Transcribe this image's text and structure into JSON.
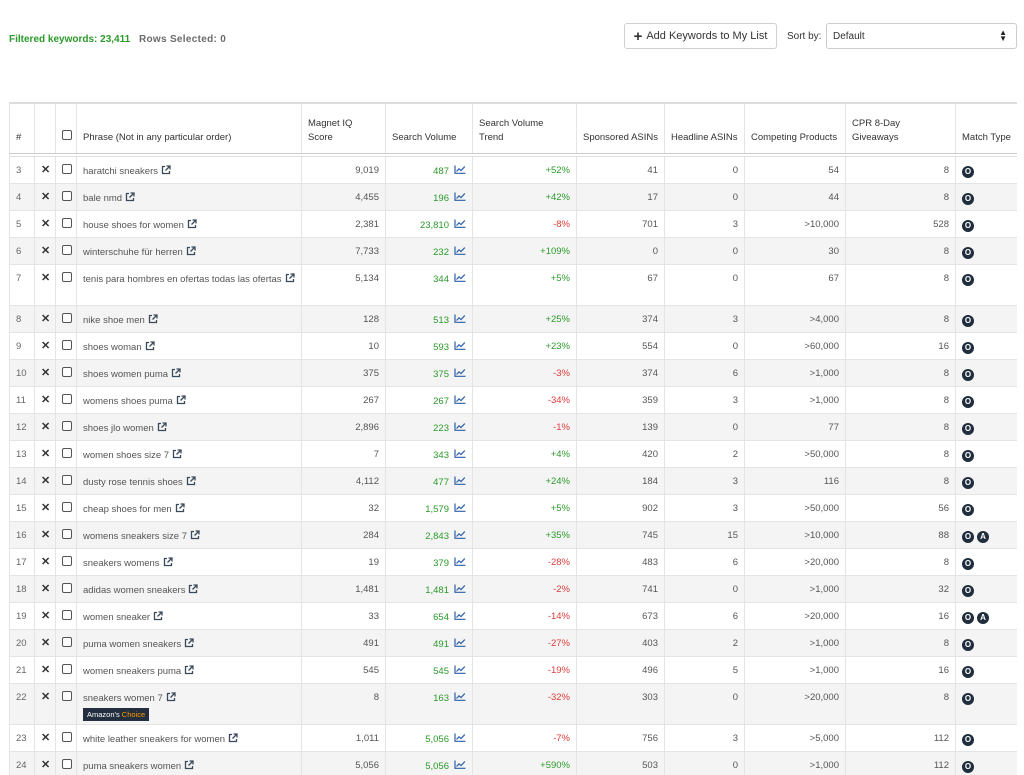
{
  "header": {
    "filtered_label": "Filtered keywords: 23,411",
    "rows_selected_label": "Rows Selected: 0",
    "add_button_label": "Add Keywords to My List",
    "sort_label": "Sort by:",
    "sort_value": "Default"
  },
  "table": {
    "columns": [
      "#",
      "",
      "",
      "Phrase (Not in any particular order)",
      "Magnet IQ Score",
      "Search Volume",
      "Search Volume Trend",
      "Sponsored ASINs",
      "Headline ASINs",
      "Competing Products",
      "CPR 8-Day Giveaways",
      "Match Type"
    ],
    "badge_text": "Amazon's",
    "badge_choice": "Choice",
    "rows": [
      {
        "n": "3",
        "phrase": "haratchi sneakers",
        "iq": "9,019",
        "vol": "487",
        "trend": "+52%",
        "sponsored": "41",
        "headline": "0",
        "competing": "54",
        "cpr": "8",
        "match": [
          "O"
        ]
      },
      {
        "n": "4",
        "phrase": "bale nmd",
        "iq": "4,455",
        "vol": "196",
        "trend": "+42%",
        "sponsored": "17",
        "headline": "0",
        "competing": "44",
        "cpr": "8",
        "match": [
          "O"
        ]
      },
      {
        "n": "5",
        "phrase": "house shoes for women",
        "iq": "2,381",
        "vol": "23,810",
        "trend": "-8%",
        "sponsored": "701",
        "headline": "3",
        "competing": ">10,000",
        "cpr": "528",
        "match": [
          "O"
        ]
      },
      {
        "n": "6",
        "phrase": "winterschuhe für herren",
        "iq": "7,733",
        "vol": "232",
        "trend": "+109%",
        "sponsored": "0",
        "headline": "0",
        "competing": "30",
        "cpr": "8",
        "match": [
          "O"
        ]
      },
      {
        "n": "7",
        "phrase": "tenis para hombres en ofertas todas las ofertas",
        "iq": "5,134",
        "vol": "344",
        "trend": "+5%",
        "sponsored": "67",
        "headline": "0",
        "competing": "67",
        "cpr": "8",
        "match": [
          "O"
        ],
        "tall": true
      },
      {
        "n": "8",
        "phrase": "nike shoe men",
        "iq": "128",
        "vol": "513",
        "trend": "+25%",
        "sponsored": "374",
        "headline": "3",
        "competing": ">4,000",
        "cpr": "8",
        "match": [
          "O"
        ]
      },
      {
        "n": "9",
        "phrase": "shoes woman",
        "iq": "10",
        "vol": "593",
        "trend": "+23%",
        "sponsored": "554",
        "headline": "0",
        "competing": ">60,000",
        "cpr": "16",
        "match": [
          "O"
        ]
      },
      {
        "n": "10",
        "phrase": "shoes women puma",
        "iq": "375",
        "vol": "375",
        "trend": "-3%",
        "sponsored": "374",
        "headline": "6",
        "competing": ">1,000",
        "cpr": "8",
        "match": [
          "O"
        ]
      },
      {
        "n": "11",
        "phrase": "womens shoes puma",
        "iq": "267",
        "vol": "267",
        "trend": "-34%",
        "sponsored": "359",
        "headline": "3",
        "competing": ">1,000",
        "cpr": "8",
        "match": [
          "O"
        ]
      },
      {
        "n": "12",
        "phrase": "shoes jlo women",
        "iq": "2,896",
        "vol": "223",
        "trend": "-1%",
        "sponsored": "139",
        "headline": "0",
        "competing": "77",
        "cpr": "8",
        "match": [
          "O"
        ]
      },
      {
        "n": "13",
        "phrase": "women shoes size 7",
        "iq": "7",
        "vol": "343",
        "trend": "+4%",
        "sponsored": "420",
        "headline": "2",
        "competing": ">50,000",
        "cpr": "8",
        "match": [
          "O"
        ]
      },
      {
        "n": "14",
        "phrase": "dusty rose tennis shoes",
        "iq": "4,112",
        "vol": "477",
        "trend": "+24%",
        "sponsored": "184",
        "headline": "3",
        "competing": "116",
        "cpr": "8",
        "match": [
          "O"
        ]
      },
      {
        "n": "15",
        "phrase": "cheap shoes for men",
        "iq": "32",
        "vol": "1,579",
        "trend": "+5%",
        "sponsored": "902",
        "headline": "3",
        "competing": ">50,000",
        "cpr": "56",
        "match": [
          "O"
        ]
      },
      {
        "n": "16",
        "phrase": "womens sneakers size 7",
        "iq": "284",
        "vol": "2,843",
        "trend": "+35%",
        "sponsored": "745",
        "headline": "15",
        "competing": ">10,000",
        "cpr": "88",
        "match": [
          "O",
          "A"
        ]
      },
      {
        "n": "17",
        "phrase": "sneakers womens",
        "iq": "19",
        "vol": "379",
        "trend": "-28%",
        "sponsored": "483",
        "headline": "6",
        "competing": ">20,000",
        "cpr": "8",
        "match": [
          "O"
        ]
      },
      {
        "n": "18",
        "phrase": "adidas women sneakers",
        "iq": "1,481",
        "vol": "1,481",
        "trend": "-2%",
        "sponsored": "741",
        "headline": "0",
        "competing": ">1,000",
        "cpr": "32",
        "match": [
          "O"
        ]
      },
      {
        "n": "19",
        "phrase": "women sneaker",
        "iq": "33",
        "vol": "654",
        "trend": "-14%",
        "sponsored": "673",
        "headline": "6",
        "competing": ">20,000",
        "cpr": "16",
        "match": [
          "O",
          "A"
        ]
      },
      {
        "n": "20",
        "phrase": "puma women sneakers",
        "iq": "491",
        "vol": "491",
        "trend": "-27%",
        "sponsored": "403",
        "headline": "2",
        "competing": ">1,000",
        "cpr": "8",
        "match": [
          "O"
        ]
      },
      {
        "n": "21",
        "phrase": "women sneakers puma",
        "iq": "545",
        "vol": "545",
        "trend": "-19%",
        "sponsored": "496",
        "headline": "5",
        "competing": ">1,000",
        "cpr": "16",
        "match": [
          "O"
        ]
      },
      {
        "n": "22",
        "phrase": "sneakers women 7",
        "iq": "8",
        "vol": "163",
        "trend": "-32%",
        "sponsored": "303",
        "headline": "0",
        "competing": ">20,000",
        "cpr": "8",
        "match": [
          "O"
        ],
        "tall": true,
        "amazons_choice": true
      },
      {
        "n": "23",
        "phrase": "white leather sneakers for women",
        "iq": "1,011",
        "vol": "5,056",
        "trend": "-7%",
        "sponsored": "756",
        "headline": "3",
        "competing": ">5,000",
        "cpr": "112",
        "match": [
          "O"
        ]
      },
      {
        "n": "24",
        "phrase": "puma sneakers women",
        "iq": "5,056",
        "vol": "5,056",
        "trend": "+590%",
        "sponsored": "503",
        "headline": "0",
        "competing": ">1,000",
        "cpr": "112",
        "match": [
          "O"
        ]
      }
    ]
  },
  "colors": {
    "positive": "#2b9a2b",
    "negative": "#e03b3b",
    "match_badge": "#1f2d3d"
  }
}
